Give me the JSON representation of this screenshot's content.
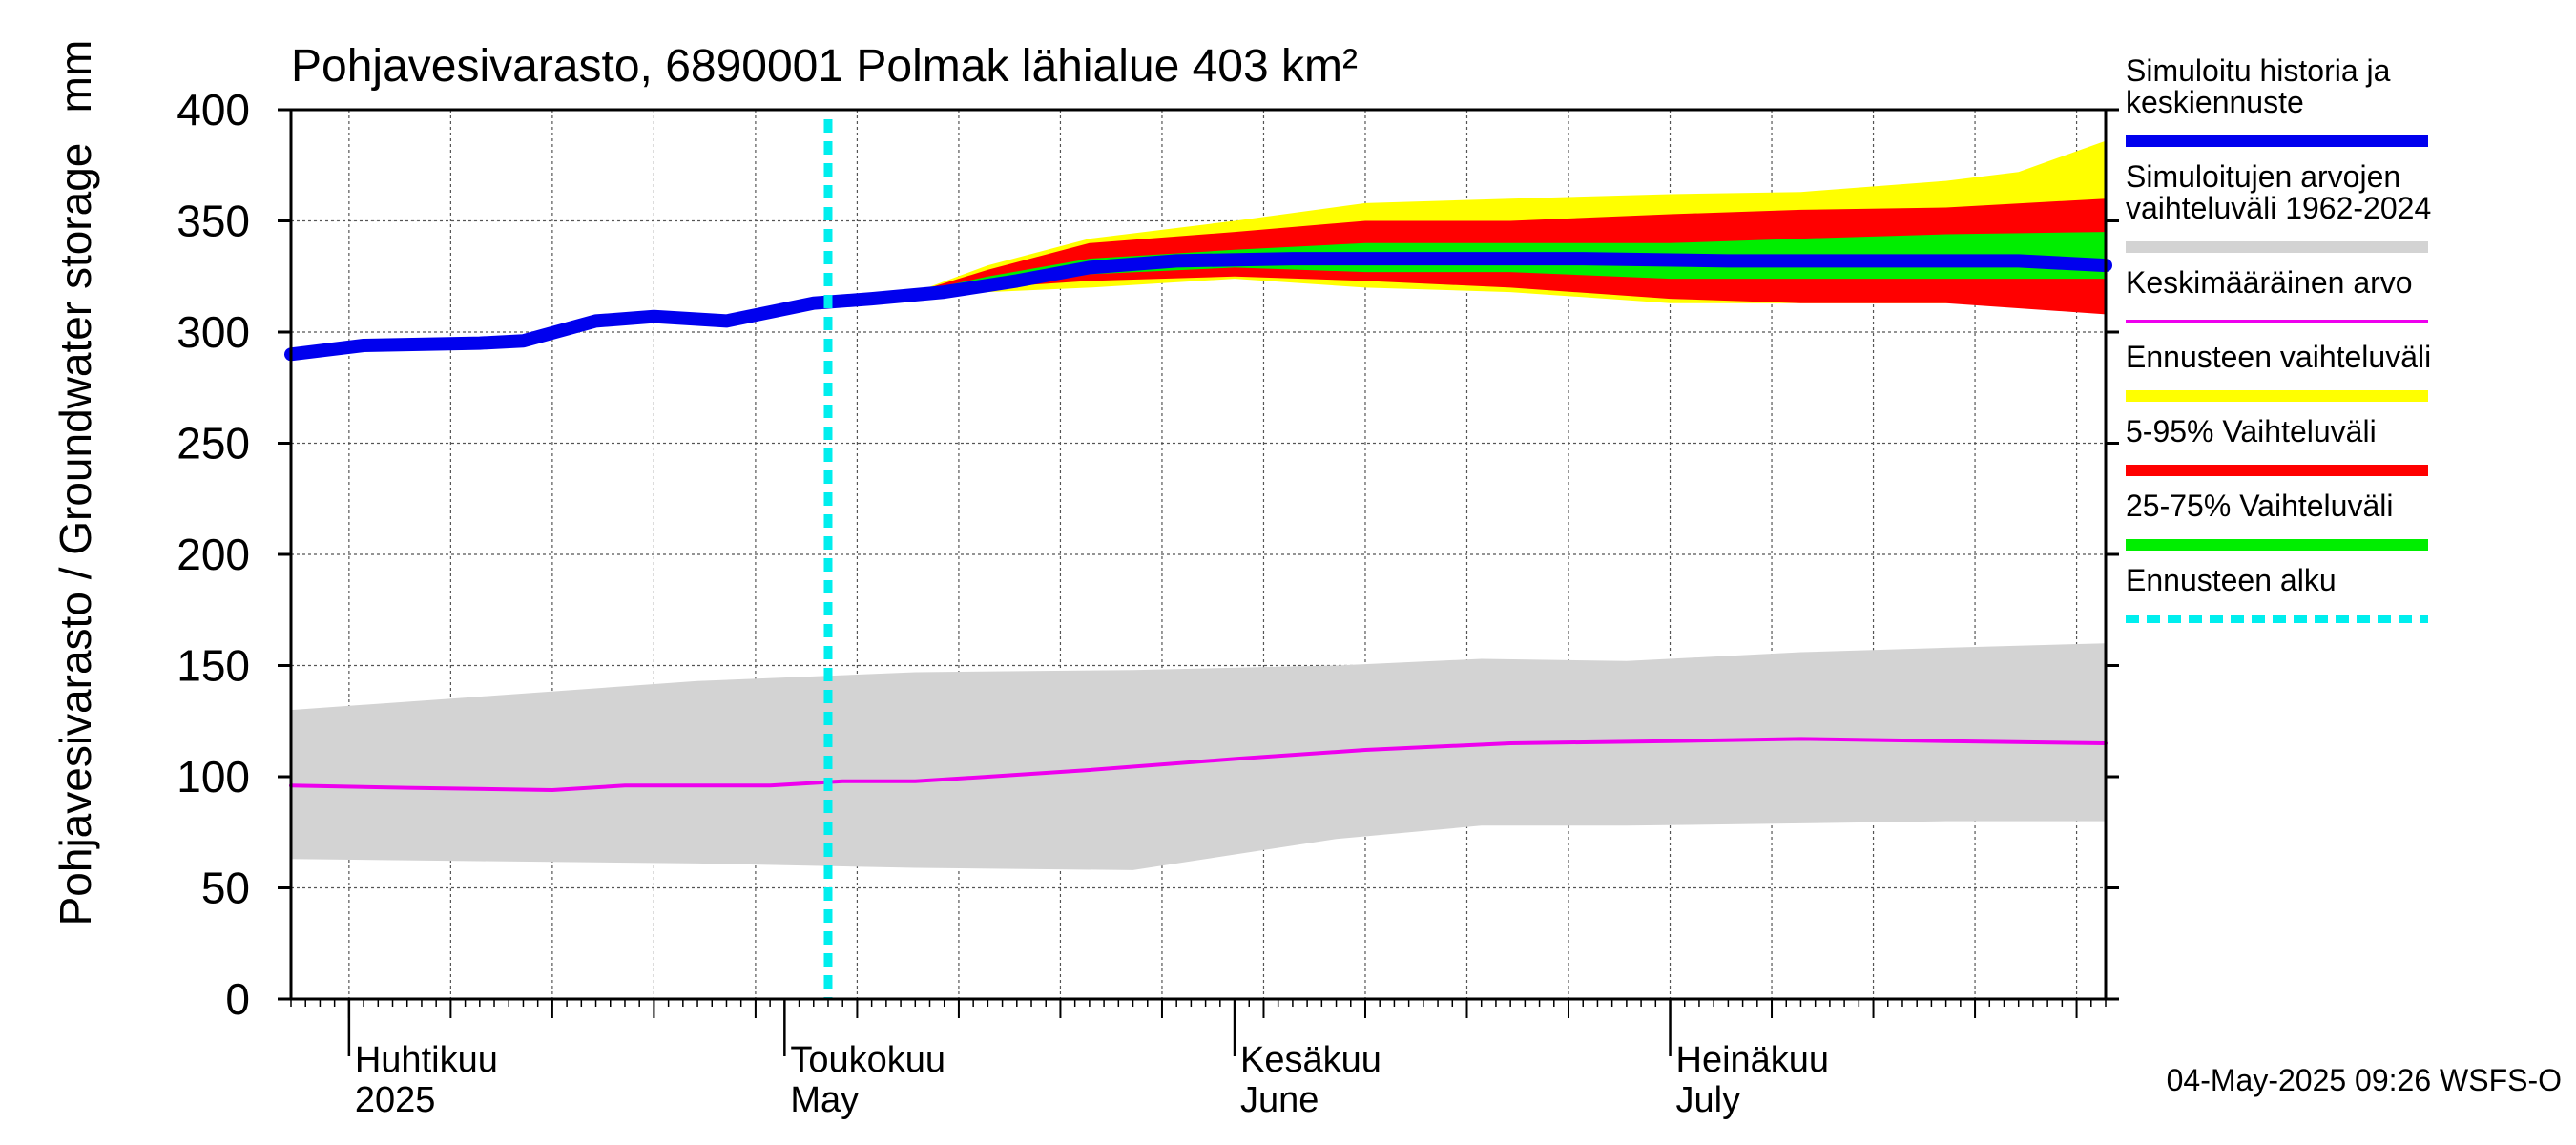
{
  "chart_data": {
    "type": "area",
    "title": "Pohjavesivarasto, 6890001 Polmak lähialue 403 km²",
    "ylabel": "Pohjavesivarasto / Groundwater storage",
    "yunit": "mm",
    "ylim": [
      0,
      400
    ],
    "yticks": [
      0,
      50,
      100,
      150,
      200,
      250,
      300,
      350,
      400
    ],
    "xlim": [
      "2025-03-28",
      "2025-07-31"
    ],
    "forecast_start": "2025-05-04",
    "month_labels": [
      {
        "date": "2025-04-01",
        "fi": "Huhtikuu",
        "en": "2025"
      },
      {
        "date": "2025-05-01",
        "fi": "Toukokuu",
        "en": "May"
      },
      {
        "date": "2025-06-01",
        "fi": "Kesäkuu",
        "en": "June"
      },
      {
        "date": "2025-07-01",
        "fi": "Heinäkuu",
        "en": "July"
      }
    ],
    "grid": true,
    "legend_position": "right",
    "legend": [
      {
        "key": "sim",
        "label_lines": [
          "Simuloitu historia ja",
          "keskiennuste"
        ],
        "color": "#0000ee",
        "style": "thick"
      },
      {
        "key": "hist_range",
        "label_lines": [
          "Simuloitujen arvojen",
          "vaihteluväli 1962-2024"
        ],
        "color": "#d3d3d3",
        "style": "thick"
      },
      {
        "key": "mean",
        "label_lines": [
          "Keskimääräinen arvo"
        ],
        "color": "#ee00ee",
        "style": "thin"
      },
      {
        "key": "fc_range",
        "label_lines": [
          "Ennusteen vaihteluväli"
        ],
        "color": "#ffff00",
        "style": "thick"
      },
      {
        "key": "p5_95",
        "label_lines": [
          "5-95% Vaihteluväli"
        ],
        "color": "#ff0000",
        "style": "thick"
      },
      {
        "key": "p25_75",
        "label_lines": [
          "25-75% Vaihteluväli"
        ],
        "color": "#00ee00",
        "style": "thick"
      },
      {
        "key": "fc_start",
        "label_lines": [
          "Ennusteen alku"
        ],
        "color": "#00eeee",
        "style": "dashed"
      }
    ],
    "series": {
      "hist_range": {
        "name": "Simuloitujen arvojen vaihteluväli 1962-2024",
        "x": [
          "2025-03-28",
          "2025-04-10",
          "2025-04-25",
          "2025-05-10",
          "2025-05-25",
          "2025-06-08",
          "2025-06-18",
          "2025-06-28",
          "2025-07-10",
          "2025-07-20",
          "2025-07-31"
        ],
        "upper": [
          130,
          136,
          143,
          147,
          148,
          150,
          153,
          152,
          156,
          158,
          160
        ],
        "lower": [
          63,
          62,
          61,
          59,
          58,
          72,
          78,
          78,
          79,
          80,
          80
        ]
      },
      "mean": {
        "name": "Keskimääräinen arvo",
        "x": [
          "2025-03-28",
          "2025-04-05",
          "2025-04-15",
          "2025-04-20",
          "2025-04-30",
          "2025-05-05",
          "2025-05-10",
          "2025-05-15",
          "2025-05-22",
          "2025-06-01",
          "2025-06-10",
          "2025-06-20",
          "2025-07-01",
          "2025-07-10",
          "2025-07-20",
          "2025-07-31"
        ],
        "y": [
          96,
          95,
          94,
          96,
          96,
          98,
          98,
          100,
          103,
          108,
          112,
          115,
          116,
          117,
          116,
          115
        ]
      },
      "sim": {
        "name": "Simuloitu historia ja keskiennuste",
        "x": [
          "2025-03-28",
          "2025-04-02",
          "2025-04-10",
          "2025-04-13",
          "2025-04-18",
          "2025-04-22",
          "2025-04-27",
          "2025-05-03",
          "2025-05-07",
          "2025-05-12",
          "2025-05-17",
          "2025-05-22",
          "2025-05-28",
          "2025-06-05",
          "2025-06-15",
          "2025-06-25",
          "2025-07-05",
          "2025-07-15",
          "2025-07-25",
          "2025-07-31"
        ],
        "y": [
          290,
          294,
          295,
          296,
          305,
          307,
          305,
          313,
          315,
          318,
          323,
          329,
          332,
          333,
          333,
          333,
          332,
          332,
          332,
          330
        ]
      },
      "fc_range": {
        "name": "Ennusteen vaihteluväli",
        "x": [
          "2025-05-10",
          "2025-05-15",
          "2025-05-22",
          "2025-06-01",
          "2025-06-10",
          "2025-06-20",
          "2025-07-01",
          "2025-07-10",
          "2025-07-20",
          "2025-07-25",
          "2025-07-31"
        ],
        "upper": [
          318,
          330,
          342,
          350,
          358,
          360,
          362,
          363,
          368,
          372,
          386
        ],
        "lower": [
          318,
          318,
          320,
          324,
          320,
          318,
          313,
          313,
          313,
          315,
          315
        ]
      },
      "p5_95": {
        "name": "5-95% Vaihteluväli",
        "x": [
          "2025-05-10",
          "2025-05-15",
          "2025-05-22",
          "2025-06-01",
          "2025-06-10",
          "2025-06-20",
          "2025-07-01",
          "2025-07-10",
          "2025-07-20",
          "2025-07-31"
        ],
        "upper": [
          318,
          328,
          340,
          345,
          350,
          350,
          353,
          355,
          356,
          360
        ],
        "lower": [
          318,
          320,
          323,
          325,
          323,
          320,
          315,
          313,
          313,
          308
        ]
      },
      "p25_75": {
        "name": "25-75% Vaihteluväli",
        "x": [
          "2025-05-10",
          "2025-05-15",
          "2025-05-22",
          "2025-06-01",
          "2025-06-10",
          "2025-06-20",
          "2025-07-01",
          "2025-07-10",
          "2025-07-20",
          "2025-07-31"
        ],
        "upper": [
          318,
          325,
          333,
          337,
          340,
          340,
          340,
          342,
          344,
          345
        ],
        "lower": [
          318,
          320,
          326,
          329,
          327,
          327,
          324,
          324,
          324,
          324
        ]
      }
    }
  },
  "footer": {
    "timestamp": "04-May-2025 09:26 WSFS-O"
  }
}
